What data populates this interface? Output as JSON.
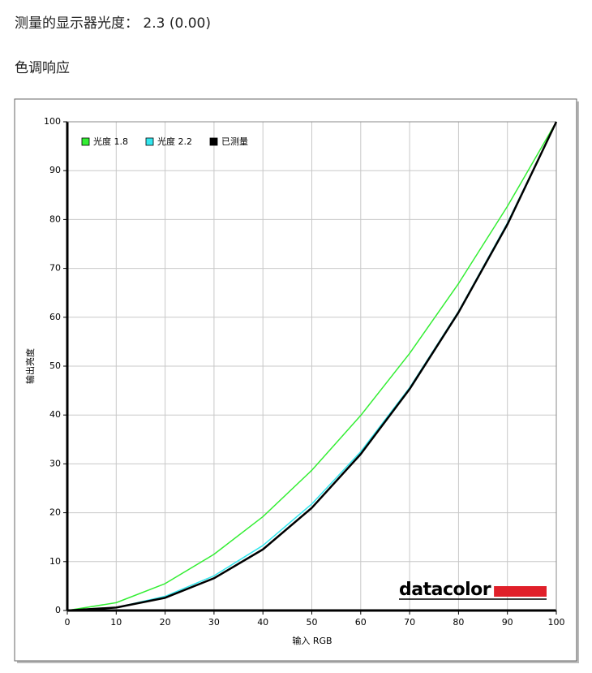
{
  "page": {
    "heading": "测量的显示器光度： 2.3 (0.00)",
    "section": "色调响应"
  },
  "chart_data": {
    "type": "line",
    "x": [
      0,
      10,
      20,
      30,
      40,
      50,
      60,
      70,
      80,
      90,
      100
    ],
    "series": [
      {
        "name": "光度 1.8",
        "color": "#33ee33",
        "values": [
          0,
          1.6,
          5.5,
          11.5,
          19.2,
          28.7,
          39.9,
          52.6,
          66.9,
          82.7,
          100
        ]
      },
      {
        "name": "光度 2.2",
        "color": "#33e6ee",
        "values": [
          0,
          0.6,
          2.9,
          7.1,
          13.3,
          21.8,
          32.5,
          45.6,
          61.2,
          79.3,
          100
        ]
      },
      {
        "name": "已测量",
        "color": "#000000",
        "values": [
          0,
          0.6,
          2.6,
          6.6,
          12.5,
          21.0,
          32.0,
          45.3,
          61.0,
          79.0,
          100
        ]
      }
    ],
    "xlabel": "输入 RGB",
    "ylabel": "输出亮度",
    "xlim": [
      0,
      100
    ],
    "ylim": [
      0,
      100
    ],
    "xticks": [
      0,
      10,
      20,
      30,
      40,
      50,
      60,
      70,
      80,
      90,
      100
    ],
    "yticks": [
      0,
      10,
      20,
      30,
      40,
      50,
      60,
      70,
      80,
      90,
      100
    ],
    "grid": true,
    "legend": "top-left",
    "logo": "datacolor"
  }
}
